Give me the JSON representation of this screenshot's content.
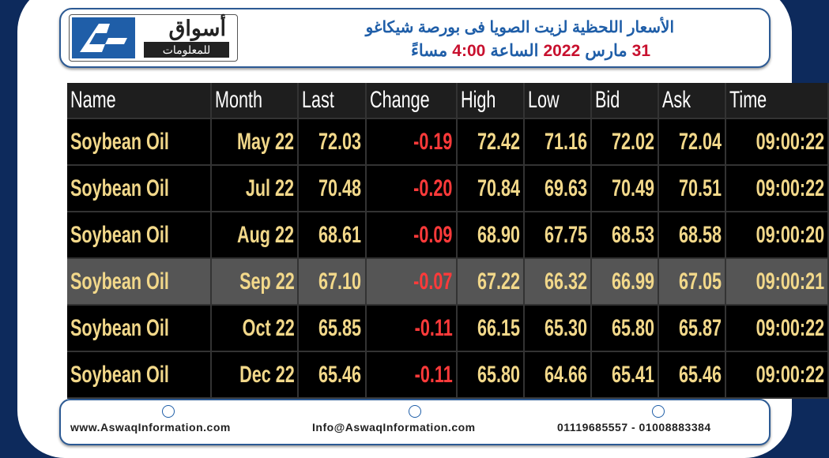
{
  "header": {
    "logo_name": "أسواق",
    "logo_sub": "للمعلومات",
    "title": "الأسعار اللحظية لزيت الصويا فى بورصة شيكاغو",
    "subtitle_parts": [
      "31",
      "مارس",
      "2022",
      "الساعة",
      "4:00",
      "مساءً"
    ]
  },
  "table": {
    "columns": [
      "Name",
      "Month",
      "Last",
      "Change",
      "High",
      "Low",
      "Bid",
      "Ask",
      "Time"
    ],
    "highlighted_row": 3,
    "rows": [
      [
        "Soybean Oil",
        "May 22",
        "72.03",
        "-0.19",
        "72.42",
        "71.16",
        "72.02",
        "72.04",
        "09:00:22"
      ],
      [
        "Soybean Oil",
        "Jul 22",
        "70.48",
        "-0.20",
        "70.84",
        "69.63",
        "70.49",
        "70.51",
        "09:00:22"
      ],
      [
        "Soybean Oil",
        "Aug 22",
        "68.61",
        "-0.09",
        "68.90",
        "67.75",
        "68.53",
        "68.58",
        "09:00:20"
      ],
      [
        "Soybean Oil",
        "Sep 22",
        "67.10",
        "-0.07",
        "67.22",
        "66.32",
        "66.99",
        "67.05",
        "09:00:21"
      ],
      [
        "Soybean Oil",
        "Oct 22",
        "65.85",
        "-0.11",
        "66.15",
        "65.30",
        "65.80",
        "65.87",
        "09:00:22"
      ],
      [
        "Soybean Oil",
        "Dec 22",
        "65.46",
        "-0.11",
        "65.80",
        "64.66",
        "65.41",
        "65.46",
        "09:00:22"
      ]
    ]
  },
  "footer": {
    "website": "www.AswaqInformation.com",
    "email": "Info@AswaqInformation.com",
    "phones": "01119685557 - 01008883384"
  }
}
